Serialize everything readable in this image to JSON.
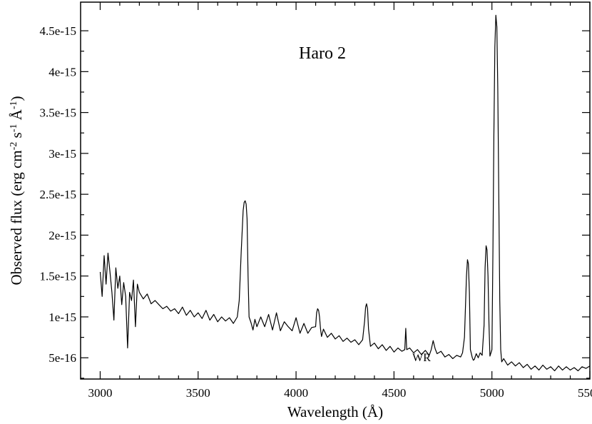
{
  "chart_data": {
    "type": "line",
    "title": "",
    "xlabel": "Wavelength (Å)",
    "ylabel": {
      "base": "Observed flux (erg cm",
      "sup1": "-2",
      "mid1": " s",
      "sup2": "-1",
      "mid2": " Å",
      "sup3": "-1",
      "end": ")"
    },
    "xlim": [
      2900,
      5500
    ],
    "ylim": [
      2.4e-16,
      4.85e-15
    ],
    "xticks": [
      3000,
      3500,
      4000,
      4500,
      5000,
      5500
    ],
    "xtick_labels": [
      "3000",
      "3500",
      "4000",
      "4500",
      "5000",
      "5500"
    ],
    "yticks": [
      5e-16,
      1e-15,
      1.5e-15,
      2e-15,
      2.5e-15,
      3e-15,
      3.5e-15,
      4e-15,
      4.5e-15
    ],
    "ytick_labels": [
      "5e-16",
      "1e-15",
      "1.5e-15",
      "2e-15",
      "2.5e-15",
      "3e-15",
      "3.5e-15",
      "4e-15",
      "4.5e-15"
    ],
    "grid": false,
    "annotations": [
      {
        "text": "Haro 2",
        "x": 3640,
        "y": 4.2e-15
      },
      {
        "text": "WR",
        "x": 4690,
        "y": 3.5e-16
      }
    ],
    "series": [
      {
        "color": "#000000",
        "x": [
          3000,
          3010,
          3020,
          3030,
          3040,
          3050,
          3060,
          3070,
          3080,
          3090,
          3100,
          3110,
          3120,
          3130,
          3140,
          3150,
          3160,
          3170,
          3180,
          3190,
          3200,
          3220,
          3240,
          3260,
          3280,
          3300,
          3320,
          3340,
          3360,
          3380,
          3400,
          3420,
          3440,
          3460,
          3480,
          3500,
          3520,
          3540,
          3560,
          3580,
          3600,
          3620,
          3640,
          3660,
          3680,
          3700,
          3710,
          3720,
          3730,
          3735,
          3740,
          3745,
          3750,
          3755,
          3760,
          3770,
          3780,
          3790,
          3800,
          3820,
          3840,
          3860,
          3880,
          3900,
          3920,
          3940,
          3960,
          3980,
          4000,
          4020,
          4040,
          4060,
          4080,
          4100,
          4105,
          4110,
          4115,
          4120,
          4125,
          4130,
          4140,
          4160,
          4180,
          4200,
          4220,
          4240,
          4260,
          4280,
          4300,
          4320,
          4340,
          4350,
          4355,
          4360,
          4365,
          4370,
          4380,
          4400,
          4420,
          4440,
          4460,
          4480,
          4500,
          4520,
          4540,
          4555,
          4560,
          4565,
          4580,
          4600,
          4620,
          4640,
          4660,
          4680,
          4690,
          4700,
          4710,
          4720,
          4740,
          4760,
          4780,
          4800,
          4820,
          4840,
          4850,
          4860,
          4870,
          4875,
          4880,
          4885,
          4890,
          4900,
          4905,
          4910,
          4920,
          4930,
          4940,
          4950,
          4960,
          4965,
          4970,
          4975,
          4980,
          4985,
          4990,
          5000,
          5005,
          5010,
          5015,
          5020,
          5025,
          5030,
          5035,
          5040,
          5045,
          5050,
          5060,
          5080,
          5100,
          5120,
          5140,
          5160,
          5180,
          5200,
          5220,
          5240,
          5260,
          5280,
          5300,
          5320,
          5340,
          5360,
          5380,
          5400,
          5420,
          5440,
          5460,
          5480,
          5500
        ],
        "y": [
          1.55e-15,
          1.25e-15,
          1.75e-15,
          1.4e-15,
          1.78e-15,
          1.55e-15,
          1.3e-15,
          9.6e-16,
          1.6e-15,
          1.35e-15,
          1.5e-15,
          1.15e-15,
          1.42e-15,
          1.25e-15,
          6.2e-16,
          1.3e-15,
          1.2e-15,
          1.45e-15,
          8.8e-16,
          1.4e-15,
          1.3e-15,
          1.22e-15,
          1.28e-15,
          1.16e-15,
          1.2e-15,
          1.15e-15,
          1.1e-15,
          1.13e-15,
          1.07e-15,
          1.1e-15,
          1.04e-15,
          1.12e-15,
          1.02e-15,
          1.08e-15,
          1e-15,
          1.05e-15,
          9.8e-16,
          1.08e-15,
          9.6e-16,
          1.03e-15,
          9.4e-16,
          1e-15,
          9.5e-16,
          9.9e-16,
          9.2e-16,
          1e-15,
          1.2e-15,
          1.8e-15,
          2.3e-15,
          2.4e-15,
          2.42e-15,
          2.38e-15,
          2.2e-15,
          1.5e-15,
          1e-15,
          9.3e-16,
          8.4e-16,
          9.7e-16,
          8.8e-16,
          1e-15,
          8.8e-16,
          1.03e-15,
          8.4e-16,
          1.05e-15,
          8.3e-16,
          9.4e-16,
          8.8e-16,
          8.3e-16,
          9.9e-16,
          8e-16,
          9.2e-16,
          8e-16,
          8.7e-16,
          8.8e-16,
          1.05e-15,
          1.1e-15,
          1.08e-15,
          1e-15,
          8.5e-16,
          7.6e-16,
          8.5e-16,
          7.5e-16,
          8e-16,
          7.3e-16,
          7.7e-16,
          7e-16,
          7.4e-16,
          6.9e-16,
          7.2e-16,
          6.6e-16,
          7.2e-16,
          9.5e-16,
          1.12e-15,
          1.16e-15,
          1.1e-15,
          8.5e-16,
          6.4e-16,
          6.8e-16,
          6.1e-16,
          6.6e-16,
          5.9e-16,
          6.4e-16,
          5.7e-16,
          6.2e-16,
          5.8e-16,
          6e-16,
          8.6e-16,
          6e-16,
          6.2e-16,
          5.6e-16,
          6e-16,
          5.4e-16,
          5.9e-16,
          5.3e-16,
          6e-16,
          7.1e-16,
          6.1e-16,
          5.5e-16,
          5.8e-16,
          5.1e-16,
          5.4e-16,
          4.9e-16,
          5.3e-16,
          5.1e-16,
          5.6e-16,
          7.5e-16,
          1.5e-15,
          1.7e-15,
          1.65e-15,
          1.3e-15,
          6e-16,
          5e-16,
          4.7e-16,
          4.8e-16,
          5.5e-16,
          5e-16,
          5.6e-16,
          5.3e-16,
          9e-16,
          1.6e-15,
          1.87e-15,
          1.82e-15,
          1.5e-15,
          9e-16,
          5.2e-16,
          6e-16,
          1.8e-15,
          3.2e-15,
          4.3e-15,
          4.69e-15,
          4.55e-15,
          3.8e-15,
          2.5e-15,
          1.2e-15,
          6e-16,
          4.5e-16,
          4.9e-16,
          4.1e-16,
          4.5e-16,
          4e-16,
          4.4e-16,
          3.8e-16,
          4.2e-16,
          3.6e-16,
          4e-16,
          3.5e-16,
          4.1e-16,
          3.6e-16,
          3.9e-16,
          3.4e-16,
          4e-16,
          3.5e-16,
          3.9e-16,
          3.5e-16,
          3.8e-16,
          3.4e-16,
          3.9e-16,
          3.7e-16,
          4e-16
        ]
      }
    ]
  }
}
